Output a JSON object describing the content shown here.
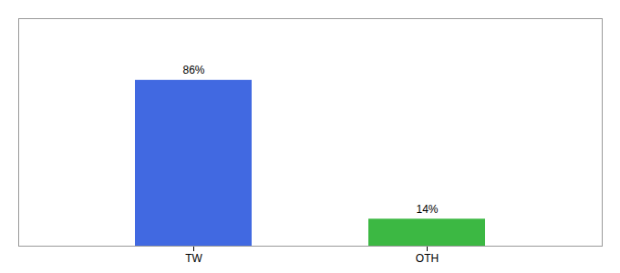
{
  "chart_data": {
    "type": "bar",
    "categories": [
      "TW",
      "OTH"
    ],
    "values": [
      86,
      14
    ],
    "value_labels": [
      "86%",
      "14%"
    ],
    "colors": [
      "#4169e1",
      "#3cb843"
    ],
    "ylim": [
      0,
      118
    ],
    "data_labels": true,
    "tick_labels": "x"
  }
}
